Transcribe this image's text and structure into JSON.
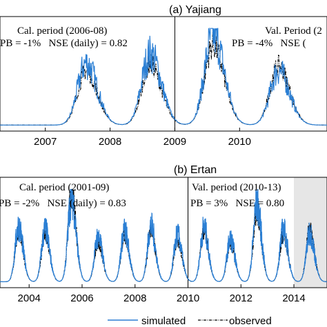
{
  "chart_data": [
    {
      "type": "line",
      "title": "(a) Yajiang",
      "x_ticks": [
        "2007",
        "2008",
        "2009",
        "2010"
      ],
      "periods": [
        {
          "label": "Cal. period (2006-08)",
          "stats": "PB = -1%   NSE (daily) = 0.82"
        },
        {
          "label": "Val. Period (2",
          "stats": "PB = -4%   NSE ("
        }
      ],
      "split_year": 2009,
      "xlim": [
        2006.3,
        2011.35
      ],
      "peaks_simulated": [
        {
          "year": 2007.63,
          "value": 0.66
        },
        {
          "year": 2008.62,
          "value": 0.76
        },
        {
          "year": 2009.59,
          "value": 0.97
        },
        {
          "year": 2010.6,
          "value": 0.58
        }
      ],
      "peaks_observed": [
        {
          "year": 2007.63,
          "value": 0.58
        },
        {
          "year": 2008.62,
          "value": 0.65
        },
        {
          "year": 2009.59,
          "value": 0.85
        },
        {
          "year": 2010.6,
          "value": 0.63
        }
      ],
      "series": [
        {
          "name": "simulated",
          "color": "#2b7fd4"
        },
        {
          "name": "observed",
          "color": "#000000"
        }
      ]
    },
    {
      "type": "line",
      "title": "(b) Ertan",
      "x_ticks": [
        "2004",
        "2006",
        "2008",
        "2010",
        "2012",
        "2014"
      ],
      "periods": [
        {
          "label": "Cal. period (2001-09)",
          "stats": "PB = -2%   NSE (daily) = 0.83"
        },
        {
          "label": "Val. period (2010-13)",
          "stats": "PB = 3%   NSE = 0.80"
        }
      ],
      "split_year": 2010,
      "shaded_from_year": 2014,
      "xlim": [
        2002.9,
        2015.25
      ],
      "peaks_simulated": [
        {
          "year": 2003.6,
          "value": 0.62
        },
        {
          "year": 2004.6,
          "value": 0.58
        },
        {
          "year": 2005.6,
          "value": 0.97
        },
        {
          "year": 2006.6,
          "value": 0.5
        },
        {
          "year": 2007.6,
          "value": 0.57
        },
        {
          "year": 2008.6,
          "value": 0.62
        },
        {
          "year": 2009.6,
          "value": 0.52
        },
        {
          "year": 2010.6,
          "value": 0.6
        },
        {
          "year": 2011.6,
          "value": 0.47
        },
        {
          "year": 2012.6,
          "value": 0.88
        },
        {
          "year": 2013.6,
          "value": 0.58
        },
        {
          "year": 2014.6,
          "value": 0.55
        }
      ],
      "peaks_observed": [
        {
          "year": 2003.6,
          "value": 0.58
        },
        {
          "year": 2004.6,
          "value": 0.54
        },
        {
          "year": 2005.6,
          "value": 1.0
        },
        {
          "year": 2006.6,
          "value": 0.44
        },
        {
          "year": 2007.6,
          "value": 0.52
        },
        {
          "year": 2008.6,
          "value": 0.56
        },
        {
          "year": 2009.6,
          "value": 0.48
        },
        {
          "year": 2010.6,
          "value": 0.56
        },
        {
          "year": 2011.6,
          "value": 0.43
        },
        {
          "year": 2012.6,
          "value": 0.78
        },
        {
          "year": 2013.6,
          "value": 0.53
        },
        {
          "year": 2014.6,
          "value": 0.6
        }
      ],
      "series": [
        {
          "name": "simulated",
          "color": "#2b7fd4"
        },
        {
          "name": "observed",
          "color": "#000000"
        }
      ]
    }
  ],
  "legend": [
    {
      "label": "simulated",
      "color": "#2b7fd4",
      "style": "solid"
    },
    {
      "label": "observed",
      "color": "#000000",
      "style": "dash-dot"
    }
  ]
}
